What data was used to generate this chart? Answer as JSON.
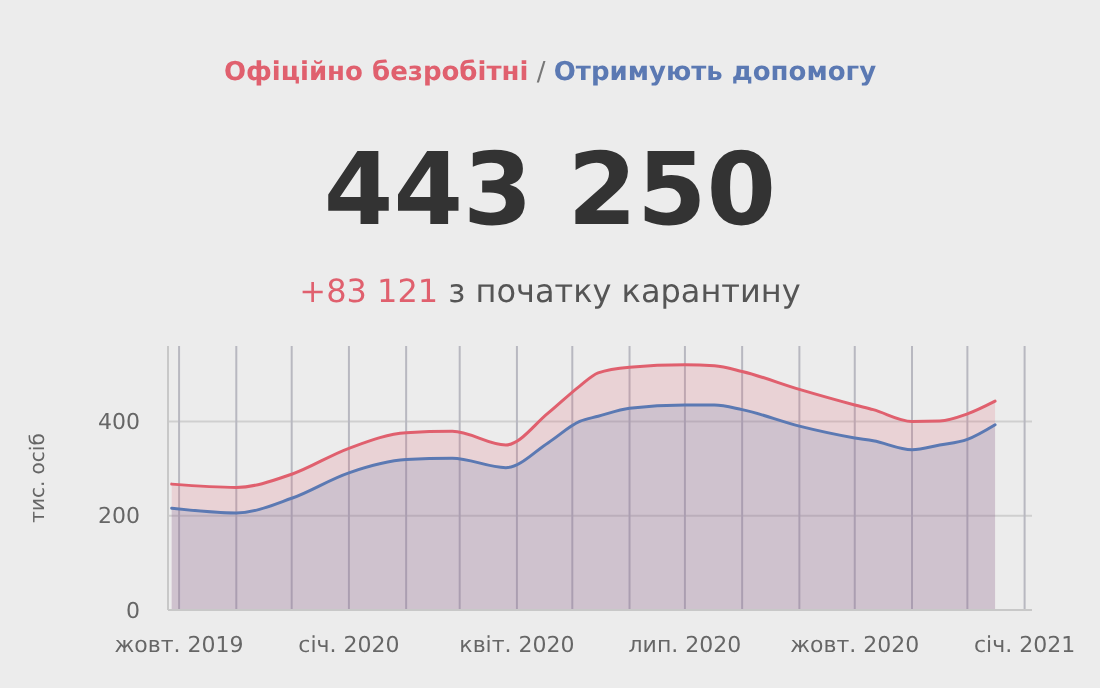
{
  "chart_data": {
    "type": "area",
    "title": "443 250",
    "annotations": [
      "/",
      "+83 121",
      "з початку карантину"
    ],
    "ylabel": "тис. осіб",
    "x": [
      "2019-09-27",
      "2019-11-01",
      "2019-12-01",
      "2020-01-01",
      "2020-02-01",
      "2020-02-26",
      "2020-03-26",
      "2020-04-18",
      "2020-05-05",
      "2020-05-15",
      "2020-06-01",
      "2020-07-01",
      "2020-07-17",
      "2020-08-01",
      "2020-09-01",
      "2020-10-01",
      "2020-10-11",
      "2020-11-01",
      "2020-11-16",
      "2020-12-01",
      "2020-12-16"
    ],
    "series": [
      {
        "name": "Офіційно безробітні",
        "color": "#e0606e",
        "values": [
          267,
          260,
          288,
          343,
          376,
          379,
          350,
          418,
          475,
          503,
          515,
          520,
          518,
          506,
          468,
          435,
          425,
          400,
          401,
          416,
          443
        ]
      },
      {
        "name": "Отримують допомогу",
        "color": "#5b79b3",
        "values": [
          216,
          206,
          237,
          291,
          319,
          322,
          302,
          355,
          400,
          411,
          428,
          435,
          435,
          425,
          390,
          365,
          359,
          340,
          350,
          362,
          393
        ]
      }
    ],
    "xlim": [
      "2019-09-25",
      "2021-01-05"
    ],
    "xticks": [
      {
        "value": "2019-10-01",
        "label": "жовт. 2019"
      },
      {
        "value": "2019-11-01",
        "label": null
      },
      {
        "value": "2019-12-01",
        "label": null
      },
      {
        "value": "2020-01-01",
        "label": "січ. 2020"
      },
      {
        "value": "2020-02-01",
        "label": null
      },
      {
        "value": "2020-03-01",
        "label": null
      },
      {
        "value": "2020-04-01",
        "label": "квіт. 2020"
      },
      {
        "value": "2020-05-01",
        "label": null
      },
      {
        "value": "2020-06-01",
        "label": null
      },
      {
        "value": "2020-07-01",
        "label": "лип. 2020"
      },
      {
        "value": "2020-08-01",
        "label": null
      },
      {
        "value": "2020-09-01",
        "label": null
      },
      {
        "value": "2020-10-01",
        "label": "жовт. 2020"
      },
      {
        "value": "2020-11-01",
        "label": null
      },
      {
        "value": "2020-12-01",
        "label": null
      },
      {
        "value": "2021-01-01",
        "label": "січ. 2021"
      }
    ],
    "ylim": [
      0,
      560
    ],
    "yticks": [
      0,
      200,
      400
    ],
    "grid": true,
    "legend": "top"
  }
}
